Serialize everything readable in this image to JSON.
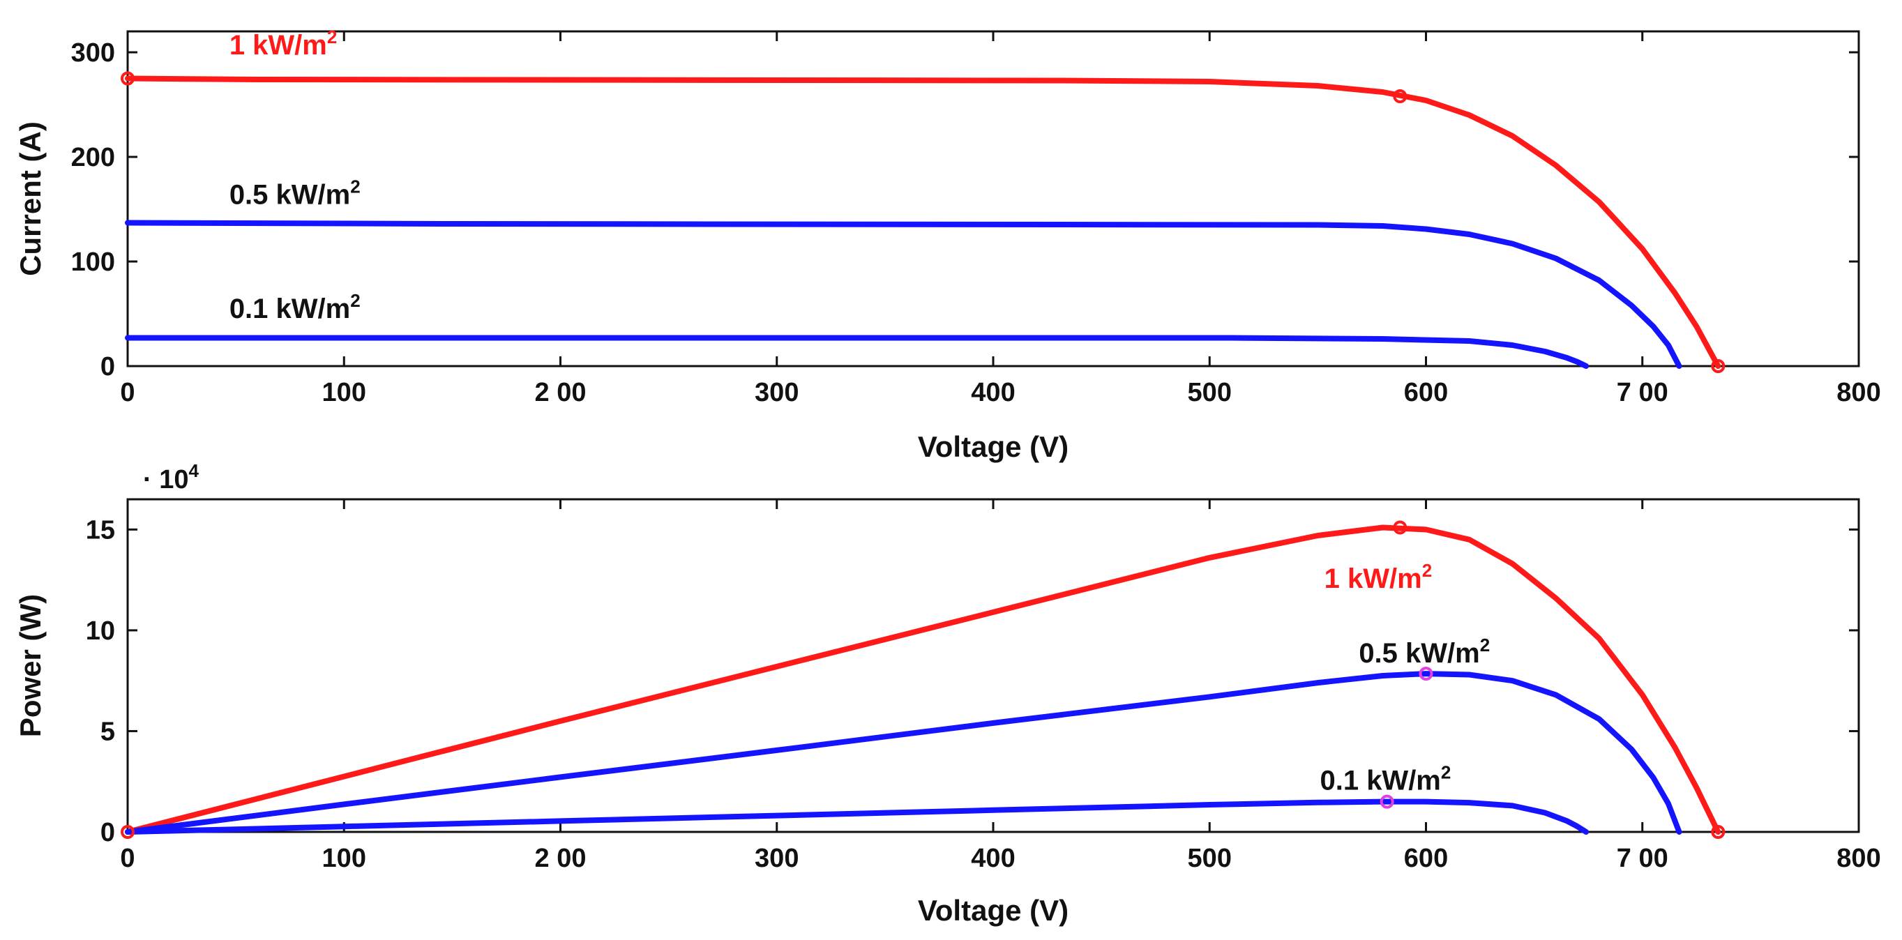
{
  "chart_data": [
    {
      "type": "line",
      "id": "iv",
      "title": "",
      "xlabel": "Voltage (V)",
      "ylabel": "Current (A)",
      "xlim": [
        0,
        800
      ],
      "ylim": [
        0,
        320
      ],
      "xticks": [
        "0",
        "100",
        "2 00",
        "300",
        "400",
        "500",
        "600",
        "7 00",
        "800"
      ],
      "yticks": [
        "0",
        "100",
        "200",
        "300"
      ],
      "series": [
        {
          "name": "1 kW/m2",
          "color": "#ff1a1a",
          "x": [
            0,
            60,
            430,
            500,
            550,
            580,
            600,
            620,
            640,
            660,
            680,
            700,
            715,
            725,
            735
          ],
          "y": [
            275,
            274,
            273,
            272,
            268,
            262,
            254,
            240,
            220,
            192,
            157,
            112,
            70,
            38,
            0
          ]
        },
        {
          "name": "0.5 kW/m2",
          "color": "#1414ff",
          "x": [
            0,
            150,
            550,
            580,
            600,
            620,
            640,
            660,
            680,
            695,
            705,
            712,
            717
          ],
          "y": [
            137,
            136,
            135,
            134,
            131,
            126,
            117,
            103,
            82,
            58,
            38,
            20,
            0
          ]
        },
        {
          "name": "0.1 kW/m2",
          "color": "#1414ff",
          "x": [
            0,
            510,
            580,
            620,
            640,
            655,
            665,
            670,
            674
          ],
          "y": [
            27,
            27,
            26,
            24,
            20,
            14,
            8,
            4,
            0
          ]
        }
      ],
      "annotations": [
        {
          "label": "1 kW/m",
          "sup": "2",
          "color": "#ff1a1a",
          "x": 47,
          "y": 298
        },
        {
          "label": "0.5 kW/m",
          "sup": "2",
          "color": "#111111",
          "x": 47,
          "y": 155
        },
        {
          "label": "0.1 kW/m",
          "sup": "2",
          "color": "#111111",
          "x": 47,
          "y": 46
        }
      ],
      "markers": [
        {
          "x": 0,
          "y": 275,
          "color": "#ff1a1a"
        },
        {
          "x": 588,
          "y": 258,
          "color": "#ff1a1a"
        },
        {
          "x": 735,
          "y": 0,
          "color": "#ff1a1a"
        }
      ]
    },
    {
      "type": "line",
      "id": "pv",
      "title": "",
      "xlabel": "Voltage (V)",
      "ylabel": "Power (W)",
      "exponent_label": "· 10",
      "exponent_sup": "4",
      "xlim": [
        0,
        800
      ],
      "ylim": [
        0,
        16.5
      ],
      "xticks": [
        "0",
        "100",
        "2 00",
        "300",
        "400",
        "500",
        "600",
        "7 00",
        "800"
      ],
      "yticks": [
        "0",
        "5",
        "10",
        "15"
      ],
      "series": [
        {
          "name": "1 kW/m2",
          "color": "#ff1a1a",
          "x": [
            0,
            100,
            200,
            300,
            400,
            500,
            550,
            580,
            600,
            620,
            640,
            660,
            680,
            700,
            715,
            725,
            735
          ],
          "y": [
            0,
            2.75,
            5.5,
            8.2,
            10.9,
            13.6,
            14.7,
            15.1,
            15.0,
            14.5,
            13.3,
            11.6,
            9.6,
            6.8,
            4.2,
            2.2,
            0
          ]
        },
        {
          "name": "0.5 kW/m2",
          "color": "#1414ff",
          "x": [
            0,
            100,
            200,
            300,
            400,
            500,
            550,
            580,
            600,
            620,
            640,
            660,
            680,
            695,
            705,
            712,
            717
          ],
          "y": [
            0,
            1.37,
            2.72,
            4.05,
            5.4,
            6.7,
            7.4,
            7.75,
            7.85,
            7.8,
            7.5,
            6.8,
            5.6,
            4.1,
            2.7,
            1.4,
            0
          ]
        },
        {
          "name": "0.1 kW/m2",
          "color": "#1414ff",
          "x": [
            0,
            50,
            100,
            200,
            300,
            400,
            500,
            550,
            580,
            600,
            620,
            640,
            655,
            665,
            670,
            674
          ],
          "y": [
            0,
            0.13,
            0.27,
            0.54,
            0.81,
            1.08,
            1.35,
            1.46,
            1.5,
            1.5,
            1.45,
            1.3,
            0.95,
            0.55,
            0.27,
            0
          ]
        }
      ],
      "annotations": [
        {
          "label": "1 kW/m",
          "sup": "2",
          "color": "#ff1a1a",
          "x": 553,
          "y": 12.1
        },
        {
          "label": "0.5 kW/m",
          "sup": "2",
          "color": "#111111",
          "x": 569,
          "y": 8.4
        },
        {
          "label": "0.1 kW/m",
          "sup": "2",
          "color": "#111111",
          "x": 551,
          "y": 2.1
        }
      ],
      "markers": [
        {
          "x": 0,
          "y": 0,
          "color": "#ff1a1a"
        },
        {
          "x": 588,
          "y": 15.1,
          "color": "#ff1a1a"
        },
        {
          "x": 735,
          "y": 0,
          "color": "#ff1a1a"
        },
        {
          "x": 600,
          "y": 7.85,
          "color": "#e040e0"
        },
        {
          "x": 582,
          "y": 1.5,
          "color": "#e040e0"
        }
      ]
    }
  ]
}
